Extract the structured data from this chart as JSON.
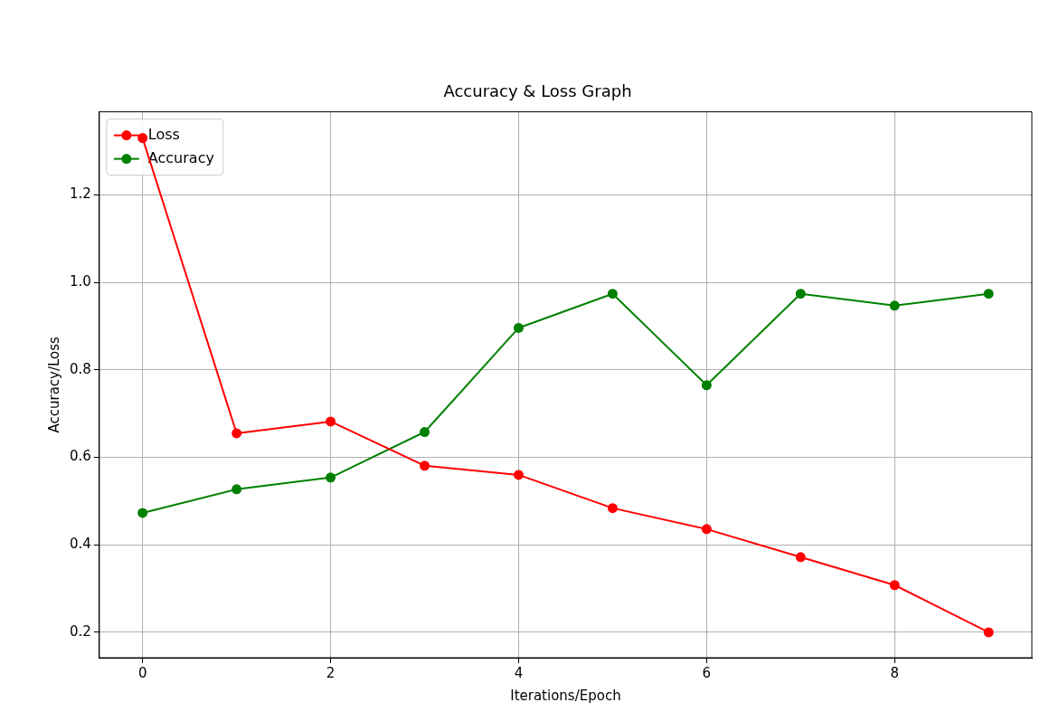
{
  "chart_data": {
    "type": "line",
    "title": "Accuracy & Loss Graph",
    "xlabel": "Iterations/Epoch",
    "ylabel": "Accuracy/Loss",
    "x": [
      0,
      1,
      2,
      3,
      4,
      5,
      6,
      7,
      8,
      9
    ],
    "series": [
      {
        "name": "Loss",
        "color": "#ff0000",
        "values": [
          1.33,
          0.655,
          0.682,
          0.581,
          0.56,
          0.484,
          0.436,
          0.372,
          0.308,
          0.2
        ]
      },
      {
        "name": "Accuracy",
        "color": "#008000",
        "values": [
          0.473,
          0.527,
          0.554,
          0.658,
          0.896,
          0.974,
          0.765,
          0.974,
          0.947,
          0.974
        ]
      }
    ],
    "xlim": [
      -0.46,
      9.46
    ],
    "xticks": [
      0,
      2,
      4,
      6,
      8
    ],
    "ylim": [
      0.142,
      1.39
    ],
    "yticks": [
      0.2,
      0.4,
      0.6,
      0.8,
      {
        "value": 1,
        "label": "1.0"
      },
      1.2
    ],
    "grid": true,
    "legend": "top left",
    "marker": "circle",
    "line_style": "solid"
  }
}
